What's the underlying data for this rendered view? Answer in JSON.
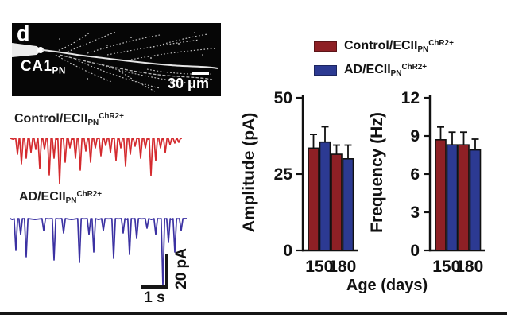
{
  "panel": {
    "label": "d"
  },
  "micrograph": {
    "cell_label": "CA1",
    "cell_label_sub": "PN",
    "scalebar_label": "30 μm"
  },
  "traces": [
    {
      "name": "control-trace",
      "label_main": "Control/ECII",
      "label_sub": "PN",
      "label_sup": "ChR2+",
      "color": "#d42a2e",
      "spikes": [
        [
          9,
          20
        ],
        [
          14,
          32
        ],
        [
          20,
          25
        ],
        [
          26,
          18
        ],
        [
          32,
          14
        ],
        [
          37,
          38
        ],
        [
          43,
          14
        ],
        [
          49,
          46
        ],
        [
          55,
          25
        ],
        [
          62,
          57
        ],
        [
          69,
          30
        ],
        [
          75,
          12
        ],
        [
          82,
          25
        ],
        [
          88,
          40
        ],
        [
          95,
          16
        ],
        [
          101,
          30
        ],
        [
          107,
          12
        ],
        [
          114,
          22
        ],
        [
          120,
          9
        ],
        [
          126,
          18
        ],
        [
          133,
          28
        ],
        [
          139,
          12
        ],
        [
          145,
          35
        ],
        [
          151,
          20
        ],
        [
          157,
          10
        ],
        [
          164,
          25
        ],
        [
          170,
          12
        ],
        [
          177,
          47
        ],
        [
          183,
          28
        ],
        [
          189,
          12
        ],
        [
          195,
          18
        ],
        [
          201,
          8
        ],
        [
          207,
          6
        ],
        [
          212,
          5
        ]
      ]
    },
    {
      "name": "ad-trace",
      "label_main": "AD/ECII",
      "label_sub": "PN",
      "label_sup": "ChR2+",
      "color": "#3b31a2",
      "spikes": [
        [
          7,
          40
        ],
        [
          13,
          20
        ],
        [
          20,
          48
        ],
        [
          42,
          15
        ],
        [
          55,
          52
        ],
        [
          67,
          18
        ],
        [
          87,
          55
        ],
        [
          99,
          20
        ],
        [
          105,
          42
        ],
        [
          117,
          15
        ],
        [
          130,
          50
        ],
        [
          142,
          18
        ],
        [
          150,
          45
        ],
        [
          159,
          25
        ],
        [
          172,
          12
        ],
        [
          183,
          20
        ],
        [
          192,
          85
        ],
        [
          199,
          30
        ],
        [
          207,
          42
        ],
        [
          215,
          15
        ]
      ]
    }
  ],
  "trace_scalebar": {
    "vertical_label": "20 pA",
    "horizontal_label": "1 s"
  },
  "legend": {
    "items": [
      {
        "label_main": "Control/ECII",
        "label_sub": "PN",
        "label_sup": "ChR2+",
        "color": "#8e2025"
      },
      {
        "label_main": "AD/ECII",
        "label_sub": "PN",
        "label_sup": "ChR2+",
        "color": "#2c3a92"
      }
    ]
  },
  "chart_data": [
    {
      "type": "bar",
      "ylabel": "Amplitude (pA)",
      "xlabel": "Age (days)",
      "categories": [
        "150",
        "180"
      ],
      "ylim": [
        0,
        50
      ],
      "yticks": [
        0,
        25,
        50
      ],
      "legend_position": "top",
      "grid": false,
      "series": [
        {
          "name": "Control/ECII PN ChR2+",
          "color": "#8e2025",
          "values": [
            33.5,
            31.5
          ],
          "errors": [
            4.5,
            3.0
          ]
        },
        {
          "name": "AD/ECII PN ChR2+",
          "color": "#2c3a92",
          "values": [
            35.5,
            30.0
          ],
          "errors": [
            5.0,
            4.5
          ]
        }
      ]
    },
    {
      "type": "bar",
      "ylabel": "Frequency (Hz)",
      "xlabel": "Age (days)",
      "categories": [
        "150",
        "180"
      ],
      "ylim": [
        0,
        12
      ],
      "yticks": [
        0,
        3,
        6,
        9,
        12
      ],
      "legend_position": "top",
      "grid": false,
      "series": [
        {
          "name": "Control/ECII PN ChR2+",
          "color": "#8e2025",
          "values": [
            8.7,
            8.3
          ],
          "errors": [
            1.0,
            1.0
          ]
        },
        {
          "name": "AD/ECII PN ChR2+",
          "color": "#2c3a92",
          "values": [
            8.3,
            7.9
          ],
          "errors": [
            1.0,
            0.85
          ]
        }
      ]
    }
  ]
}
